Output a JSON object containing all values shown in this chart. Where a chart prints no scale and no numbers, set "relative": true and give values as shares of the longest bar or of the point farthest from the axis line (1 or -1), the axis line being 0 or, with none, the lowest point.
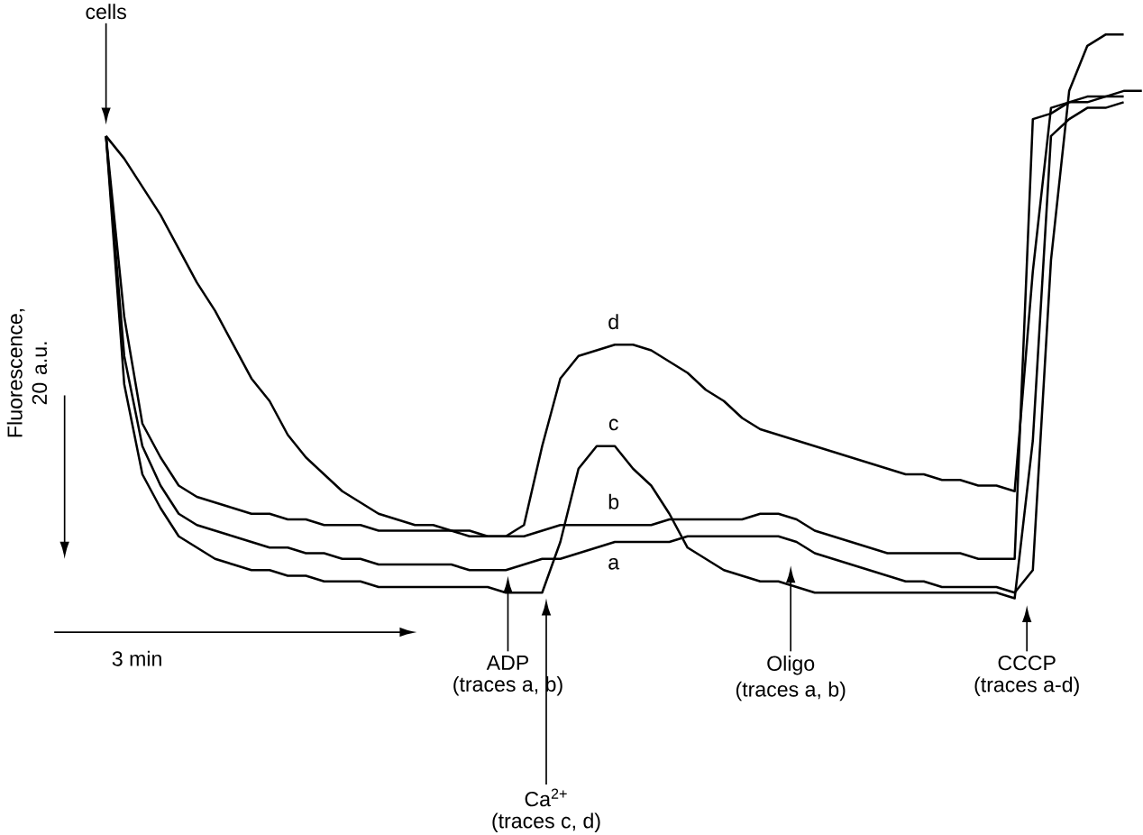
{
  "chart_data": {
    "type": "line",
    "relative": true,
    "xlabel": "3 min",
    "ylabel": "Fluorescence, 20 a.u.",
    "categories": [
      null,
      null,
      null,
      null,
      null,
      null,
      null,
      null,
      null,
      null,
      null,
      null,
      null,
      null,
      null,
      null,
      null,
      null,
      null,
      null,
      null,
      null,
      null,
      null,
      null,
      null,
      null,
      null,
      null,
      null,
      null,
      null,
      null,
      null,
      null,
      null,
      null,
      null,
      null,
      null,
      null,
      null,
      null,
      null,
      null,
      null,
      null,
      null,
      null,
      null,
      null,
      null,
      null,
      null,
      null,
      null,
      null,
      null
    ],
    "series": [
      {
        "name": "a",
        "color": "#000000",
        "values": [
          0.82,
          0.43,
          0.27,
          0.2,
          0.15,
          0.13,
          0.12,
          0.11,
          0.1,
          0.09,
          0.09,
          0.08,
          0.08,
          0.07,
          0.07,
          0.06,
          0.06,
          0.06,
          0.06,
          0.06,
          0.05,
          0.05,
          0.05,
          0.06,
          0.07,
          0.07,
          0.08,
          0.09,
          0.1,
          0.1,
          0.1,
          0.1,
          0.11,
          0.11,
          0.11,
          0.11,
          0.11,
          0.11,
          0.1,
          0.08,
          0.07,
          0.06,
          0.05,
          0.04,
          0.03,
          0.03,
          0.02,
          0.02,
          0.02,
          0.02,
          0.01,
          0.05,
          0.6,
          0.9,
          0.98,
          1,
          1,
          null
        ]
      },
      {
        "name": "b",
        "color": "#000000",
        "values": [
          0.82,
          0.5,
          0.31,
          0.25,
          0.2,
          0.18,
          0.17,
          0.16,
          0.15,
          0.15,
          0.14,
          0.14,
          0.13,
          0.13,
          0.13,
          0.12,
          0.12,
          0.12,
          0.12,
          0.12,
          0.11,
          0.11,
          0.11,
          0.11,
          0.12,
          0.13,
          0.13,
          0.13,
          0.13,
          0.13,
          0.13,
          0.14,
          0.14,
          0.14,
          0.14,
          0.14,
          0.15,
          0.15,
          0.14,
          0.12,
          0.11,
          0.1,
          0.09,
          0.08,
          0.08,
          0.08,
          0.08,
          0.08,
          0.07,
          0.07,
          0.07,
          0.85,
          0.86,
          0.88,
          0.89,
          0.89,
          0.9,
          0.9
        ]
      },
      {
        "name": "c",
        "color": "#000000",
        "values": [
          0.82,
          0.38,
          0.22,
          0.16,
          0.11,
          0.09,
          0.07,
          0.06,
          0.05,
          0.05,
          0.04,
          0.04,
          0.03,
          0.03,
          0.03,
          0.02,
          0.02,
          0.02,
          0.02,
          0.02,
          0.02,
          0.02,
          0.01,
          0.01,
          0.01,
          0.1,
          0.23,
          0.27,
          0.27,
          0.23,
          0.2,
          0.15,
          0.09,
          0.07,
          0.05,
          0.04,
          0.03,
          0.03,
          0.02,
          0.01,
          0.01,
          0.01,
          0.01,
          0.01,
          0.01,
          0.01,
          0.01,
          0.01,
          0.01,
          0.01,
          0,
          0.28,
          0.82,
          0.85,
          0.87,
          0.87,
          0.88,
          null
        ]
      },
      {
        "name": "d",
        "color": "#000000",
        "values": [
          0.82,
          0.78,
          0.73,
          0.68,
          0.62,
          0.56,
          0.51,
          0.45,
          0.39,
          0.35,
          0.29,
          0.25,
          0.22,
          0.19,
          0.17,
          0.15,
          0.14,
          0.13,
          0.13,
          0.12,
          0.12,
          0.11,
          0.11,
          0.13,
          0.27,
          0.39,
          0.43,
          0.44,
          0.45,
          0.45,
          0.44,
          0.42,
          0.4,
          0.37,
          0.35,
          0.32,
          0.3,
          0.29,
          0.28,
          0.27,
          0.26,
          0.25,
          0.24,
          0.23,
          0.22,
          0.22,
          0.21,
          0.21,
          0.2,
          0.2,
          0.19,
          0.58,
          0.87,
          0.88,
          0.88,
          0.89,
          0.89,
          null
        ]
      }
    ],
    "annotations": [
      "cells",
      "ADP",
      "(traces a, b)",
      "Ca$^{2+}$",
      "(traces c, d)",
      "Oligo",
      "(traces a, b)",
      "CCCP",
      "(traces a-d)"
    ]
  }
}
